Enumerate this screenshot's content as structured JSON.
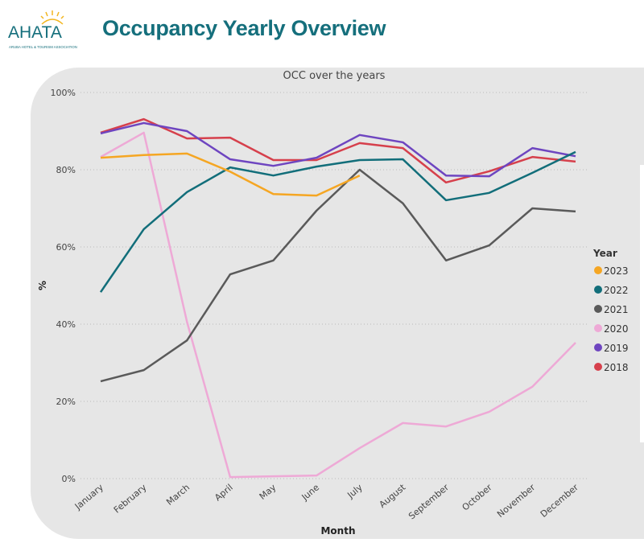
{
  "header": {
    "title": "Occupancy Yearly Overview",
    "logo_text": "AHATA",
    "logo_subtext": "ARUBA HOTEL & TOURISM ASSOCIATION"
  },
  "chart_data": {
    "type": "line",
    "title": "OCC over the years",
    "xlabel": "Month",
    "ylabel": "%",
    "categories": [
      "January",
      "February",
      "March",
      "April",
      "May",
      "June",
      "July",
      "August",
      "September",
      "October",
      "November",
      "December"
    ],
    "yticks": [
      "0%",
      "20%",
      "40%",
      "60%",
      "80%",
      "100%"
    ],
    "ylim": [
      0,
      100
    ],
    "grid": true,
    "legend": {
      "title": "Year",
      "placement": "right"
    },
    "series": [
      {
        "name": "2023",
        "color": "#f5a623",
        "values": [
          83.1,
          83.8,
          84.2,
          79.5,
          73.7,
          73.3,
          78.5,
          null,
          null,
          null,
          null,
          null
        ]
      },
      {
        "name": "2022",
        "color": "#126e7a",
        "values": [
          48.3,
          64.6,
          74.2,
          80.6,
          78.5,
          80.8,
          82.5,
          82.7,
          72.1,
          74.0,
          79.2,
          84.6
        ]
      },
      {
        "name": "2021",
        "color": "#5a5a5a",
        "values": [
          25.2,
          28.1,
          35.8,
          52.9,
          56.5,
          69.4,
          80.0,
          71.3,
          56.5,
          60.4,
          70.0,
          69.2
        ]
      },
      {
        "name": "2020",
        "color": "#eea9d6",
        "values": [
          83.3,
          89.6,
          40.6,
          0.4,
          0.6,
          0.8,
          7.9,
          14.4,
          13.5,
          17.3,
          23.8,
          35.2
        ]
      },
      {
        "name": "2019",
        "color": "#6e45c0",
        "values": [
          89.4,
          92.1,
          90.0,
          82.7,
          81.0,
          83.1,
          89.0,
          87.1,
          78.5,
          78.3,
          85.6,
          83.5
        ]
      },
      {
        "name": "2018",
        "color": "#d6404c",
        "values": [
          89.6,
          93.1,
          88.1,
          88.3,
          82.5,
          82.5,
          86.9,
          85.6,
          76.7,
          79.6,
          83.3,
          82.1
        ]
      }
    ]
  }
}
